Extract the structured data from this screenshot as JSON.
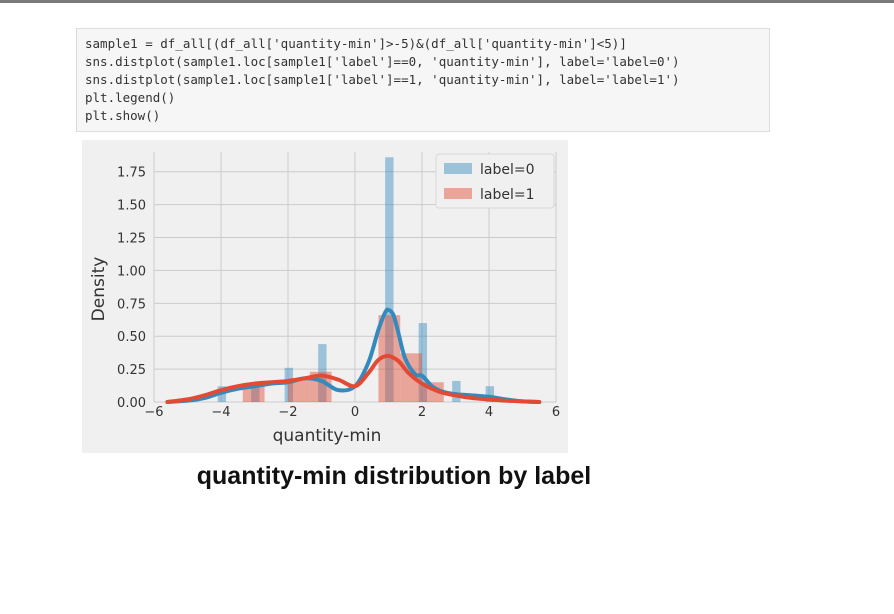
{
  "code_cell": {
    "lines": [
      "sample1 = df_all[(df_all['quantity-min']>-5)&(df_all['quantity-min']<5)]",
      "sns.distplot(sample1.loc[sample1['label']==0, 'quantity-min'], label='label=0')",
      "sns.distplot(sample1.loc[sample1['label']==1, 'quantity-min'], label='label=1')",
      "plt.legend()",
      "plt.show()"
    ]
  },
  "caption": "quantity-min distribution by label",
  "colors": {
    "label0": "#348abd",
    "label1": "#e24a33",
    "panel_bg": "#f0f0f0",
    "grid": "#cbcbcb"
  },
  "chart_data": {
    "type": "bar",
    "title": "",
    "xlabel": "quantity-min",
    "ylabel": "Density",
    "xlim": [
      -6,
      6
    ],
    "ylim": [
      0,
      1.9
    ],
    "xticks": [
      "−6",
      "−4",
      "−2",
      "0",
      "2",
      "4",
      "6"
    ],
    "xtick_values": [
      -6,
      -4,
      -2,
      0,
      2,
      4,
      6
    ],
    "yticks": [
      "0.00",
      "0.25",
      "0.50",
      "0.75",
      "1.00",
      "1.25",
      "1.50",
      "1.75"
    ],
    "ytick_values": [
      0,
      0.25,
      0.5,
      0.75,
      1.0,
      1.25,
      1.5,
      1.75
    ],
    "grid": true,
    "legend_position": "top-right",
    "series": [
      {
        "name": "label=0",
        "bins": [
          {
            "x0": -4.1,
            "x1": -3.85,
            "h": 0.12
          },
          {
            "x0": -3.1,
            "x1": -2.85,
            "h": 0.14
          },
          {
            "x0": -2.1,
            "x1": -1.85,
            "h": 0.26
          },
          {
            "x0": -1.1,
            "x1": -0.85,
            "h": 0.44
          },
          {
            "x0": 0.9,
            "x1": 1.15,
            "h": 1.86
          },
          {
            "x0": 1.9,
            "x1": 2.15,
            "h": 0.6
          },
          {
            "x0": 2.9,
            "x1": 3.15,
            "h": 0.16
          },
          {
            "x0": 3.9,
            "x1": 4.15,
            "h": 0.12
          }
        ],
        "kde_x": [
          -5.6,
          -5.0,
          -4.5,
          -4.0,
          -3.5,
          -3.0,
          -2.5,
          -2.0,
          -1.5,
          -1.0,
          -0.5,
          0.0,
          0.4,
          0.7,
          0.9,
          1.0,
          1.15,
          1.3,
          1.5,
          1.8,
          2.0,
          2.3,
          2.6,
          3.0,
          3.5,
          4.0,
          4.5,
          5.0,
          5.5
        ],
        "kde_y": [
          0.0,
          0.01,
          0.03,
          0.07,
          0.1,
          0.12,
          0.14,
          0.15,
          0.18,
          0.16,
          0.09,
          0.12,
          0.3,
          0.55,
          0.68,
          0.7,
          0.66,
          0.52,
          0.33,
          0.21,
          0.2,
          0.12,
          0.08,
          0.06,
          0.05,
          0.04,
          0.02,
          0.005,
          0.0
        ]
      },
      {
        "name": "label=1",
        "bins": [
          {
            "x0": -3.35,
            "x1": -2.7,
            "h": 0.12
          },
          {
            "x0": -2.0,
            "x1": -1.35,
            "h": 0.18
          },
          {
            "x0": -1.35,
            "x1": -0.7,
            "h": 0.23
          },
          {
            "x0": 0.7,
            "x1": 1.35,
            "h": 0.66
          },
          {
            "x0": 1.35,
            "x1": 2.0,
            "h": 0.37
          },
          {
            "x0": 2.0,
            "x1": 2.65,
            "h": 0.15
          }
        ],
        "kde_x": [
          -5.6,
          -5.0,
          -4.5,
          -4.0,
          -3.5,
          -3.0,
          -2.5,
          -2.0,
          -1.5,
          -1.0,
          -0.5,
          0.0,
          0.4,
          0.7,
          1.0,
          1.3,
          1.6,
          2.0,
          2.5,
          3.0,
          3.5,
          4.0,
          4.5,
          5.0,
          5.5
        ],
        "kde_y": [
          0.0,
          0.02,
          0.05,
          0.09,
          0.12,
          0.14,
          0.15,
          0.16,
          0.18,
          0.2,
          0.17,
          0.12,
          0.22,
          0.32,
          0.35,
          0.31,
          0.22,
          0.14,
          0.08,
          0.05,
          0.03,
          0.02,
          0.01,
          0.005,
          0.0
        ]
      }
    ]
  }
}
